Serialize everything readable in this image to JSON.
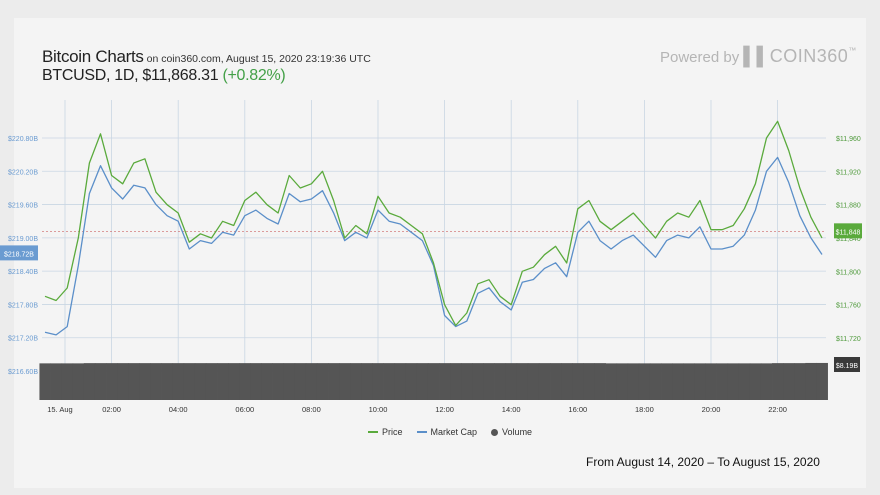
{
  "header": {
    "title": "Bitcoin Charts",
    "subtitle": "on coin360.com, August 15, 2020 23:19:36 UTC",
    "ticker": "BTCUSD, 1D, $11,868.31",
    "change": "(+0.82%)",
    "powered_by": "Powered by",
    "brand": "▌▌COIN360",
    "brand_tm": "™"
  },
  "footer": {
    "range": "From August 14, 2020 – To August 15, 2020"
  },
  "colors": {
    "price": "#5aaa3c",
    "market_cap": "#5b8fc9",
    "volume": "#555555",
    "grid": "#c9d6e3",
    "left_axis": "#6a9bd1",
    "right_axis": "#4f9a3c"
  },
  "chart_data": {
    "type": "line",
    "x": [
      "00:00",
      "00:20",
      "00:40",
      "01:00",
      "01:20",
      "01:40",
      "02:00",
      "02:20",
      "02:40",
      "03:00",
      "03:20",
      "03:40",
      "04:00",
      "04:20",
      "04:40",
      "05:00",
      "05:20",
      "05:40",
      "06:00",
      "06:20",
      "06:40",
      "07:00",
      "07:20",
      "07:40",
      "08:00",
      "08:20",
      "08:40",
      "09:00",
      "09:20",
      "09:40",
      "10:00",
      "10:20",
      "10:40",
      "11:00",
      "11:20",
      "11:40",
      "12:00",
      "12:20",
      "12:40",
      "13:00",
      "13:20",
      "13:40",
      "14:00",
      "14:20",
      "14:40",
      "15:00",
      "15:20",
      "15:40",
      "16:00",
      "16:20",
      "16:40",
      "17:00",
      "17:20",
      "17:40",
      "18:00",
      "18:20",
      "18:40",
      "19:00",
      "19:20",
      "19:40",
      "20:00",
      "20:20",
      "20:40",
      "21:00",
      "21:20",
      "21:40",
      "22:00",
      "22:20",
      "22:40",
      "23:00",
      "23:20"
    ],
    "x_tick_labels": [
      "15. Aug",
      "02:00",
      "04:00",
      "06:00",
      "08:00",
      "10:00",
      "12:00",
      "14:00",
      "16:00",
      "18:00",
      "20:00",
      "22:00"
    ],
    "series": [
      {
        "name": "Price",
        "axis": "right",
        "values": [
          11770,
          11765,
          11780,
          11840,
          11930,
          11965,
          11915,
          11905,
          11930,
          11935,
          11895,
          11880,
          11870,
          11835,
          11845,
          11840,
          11860,
          11855,
          11885,
          11895,
          11880,
          11870,
          11915,
          11900,
          11905,
          11920,
          11885,
          11840,
          11855,
          11845,
          11890,
          11870,
          11865,
          11855,
          11845,
          11810,
          11760,
          11735,
          11750,
          11785,
          11790,
          11770,
          11760,
          11800,
          11805,
          11820,
          11830,
          11810,
          11875,
          11885,
          11860,
          11850,
          11860,
          11870,
          11855,
          11840,
          11860,
          11870,
          11865,
          11885,
          11850,
          11850,
          11855,
          11875,
          11905,
          11960,
          11980,
          11945,
          11900,
          11865,
          11840
        ]
      },
      {
        "name": "Market Cap",
        "axis": "left",
        "values": [
          217.3,
          217.25,
          217.4,
          218.5,
          219.8,
          220.3,
          219.9,
          219.7,
          219.95,
          219.9,
          219.6,
          219.4,
          219.3,
          218.8,
          218.95,
          218.9,
          219.1,
          219.05,
          219.4,
          219.5,
          219.35,
          219.25,
          219.8,
          219.65,
          219.7,
          219.85,
          219.45,
          218.95,
          219.1,
          219.0,
          219.5,
          219.3,
          219.25,
          219.1,
          218.95,
          218.5,
          217.6,
          217.4,
          217.5,
          218.0,
          218.1,
          217.85,
          217.7,
          218.2,
          218.25,
          218.45,
          218.55,
          218.3,
          219.1,
          219.3,
          218.95,
          218.8,
          218.95,
          219.05,
          218.85,
          218.65,
          218.95,
          219.05,
          219.0,
          219.2,
          218.8,
          218.8,
          218.85,
          219.05,
          219.5,
          220.2,
          220.45,
          220.0,
          219.4,
          219.0,
          218.7
        ]
      },
      {
        "name": "Volume",
        "axis": "volume",
        "values": [
          8.1,
          8.1,
          8.1,
          8.1,
          8.15,
          8.15,
          8.15,
          8.15,
          8.15,
          8.15,
          8.15,
          8.15,
          8.15,
          8.15,
          8.15,
          8.15,
          8.15,
          8.15,
          8.15,
          8.15,
          8.15,
          8.15,
          8.15,
          8.15,
          8.15,
          8.15,
          8.15,
          8.15,
          8.15,
          8.15,
          8.15,
          8.15,
          8.15,
          8.15,
          8.15,
          8.15,
          8.15,
          8.15,
          8.15,
          8.15,
          8.15,
          8.15,
          8.15,
          8.15,
          8.15,
          8.15,
          8.15,
          8.15,
          8.15,
          8.15,
          8.15,
          8.1,
          8.1,
          8.1,
          8.1,
          8.1,
          8.1,
          8.1,
          8.1,
          8.1,
          8.1,
          8.1,
          8.1,
          8.1,
          8.1,
          8.1,
          8.15,
          8.15,
          8.15,
          8.19,
          8.19
        ]
      }
    ],
    "left_axis": {
      "ticks": [
        "$220.80B",
        "$220.20B",
        "$219.60B",
        "$219.00B",
        "$218.40B",
        "$217.80B",
        "$217.20B",
        "$216.60B"
      ],
      "ylim": [
        216.6,
        220.8
      ]
    },
    "right_axis": {
      "ticks": [
        "$11,960",
        "$11,920",
        "$11,880",
        "$11,840",
        "$11,800",
        "$11,760",
        "$11,720"
      ],
      "ylim": [
        11720,
        11960
      ]
    },
    "current_labels": {
      "market_cap": "$218.72B",
      "market_cap_value": 218.72,
      "price": "$11,848",
      "price_value": 11848,
      "volume": "$8.19B"
    },
    "grid": true,
    "legend": "bottom-center",
    "legend_labels": {
      "price": "Price",
      "market_cap": "Market Cap",
      "volume": "Volume"
    }
  }
}
